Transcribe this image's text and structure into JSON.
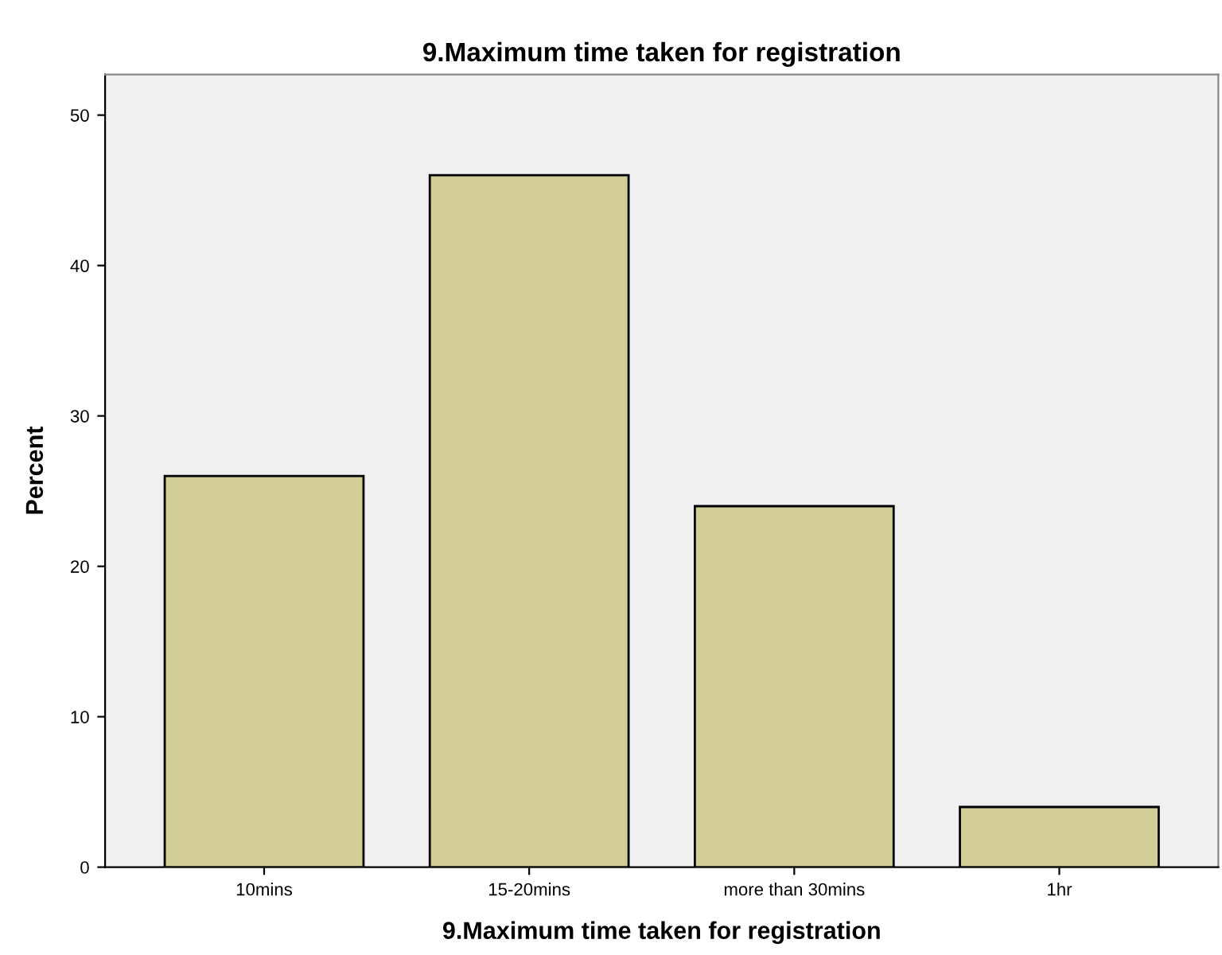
{
  "chart_data": {
    "type": "bar",
    "title": "9.Maximum time taken for registration",
    "xlabel": "9.Maximum time taken for registration",
    "ylabel": "Percent",
    "categories": [
      "10mins",
      "15-20mins",
      "more than 30mins",
      "1hr"
    ],
    "values": [
      26,
      46,
      24,
      4
    ],
    "color": "#d3ce97",
    "ylim": [
      0,
      52.7
    ],
    "yticks": [
      0,
      10,
      20,
      30,
      40,
      50
    ]
  }
}
